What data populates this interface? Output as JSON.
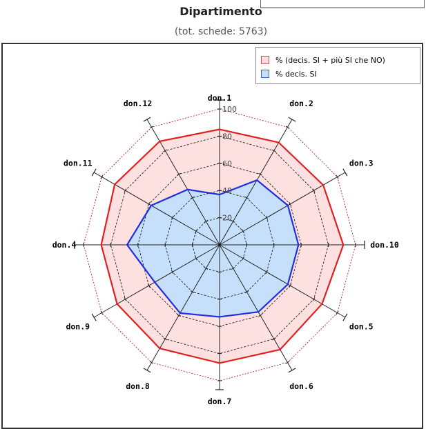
{
  "header": {
    "title": "Dipartimento",
    "subtitle": "(tot. schede: 5763)"
  },
  "legend": {
    "items": [
      {
        "label": "% (decis. SI + più SI che NO)",
        "fill": "#fde0e0",
        "stroke": "#d05050"
      },
      {
        "label": "% decis. SI",
        "fill": "#c6e0fb",
        "stroke": "#4060c0"
      }
    ]
  },
  "chart_data": {
    "type": "radar",
    "title": "Dipartimento",
    "subtitle": "(tot. schede: 5763)",
    "categories": [
      "don.1",
      "don.2",
      "don.3",
      "don.4",
      "don.5",
      "don.6",
      "don.7",
      "don.8",
      "don.9",
      "don.10",
      "don.11",
      "don.12"
    ],
    "tick_labels": [
      "20",
      "40",
      "60",
      "80",
      "100"
    ],
    "rlim": [
      0,
      100
    ],
    "grid": true,
    "legend_position": "top-right",
    "series": [
      {
        "name": "% (decis. SI + più SI che NO)",
        "values": [
          85,
          87,
          88,
          91,
          87,
          89,
          87,
          88,
          87,
          87,
          89,
          88
        ],
        "fill": "#fde0e0",
        "line": "#e02020"
      },
      {
        "name": "% decis. SI",
        "values": [
          37,
          55,
          58,
          58,
          58,
          57,
          53,
          58,
          55,
          68,
          58,
          47
        ],
        "fill": "#c6e0fb",
        "line": "#1f2fe0"
      }
    ],
    "colors": {
      "grid": "#202020",
      "ring": "#c03a3a",
      "outer": "#b02020"
    }
  }
}
